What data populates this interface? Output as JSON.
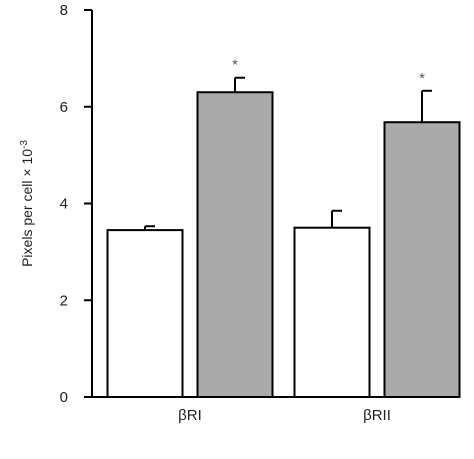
{
  "chart_data": {
    "type": "bar",
    "categories": [
      "βRI",
      "βRII"
    ],
    "series": [
      {
        "values": [
          3.45,
          3.5
        ],
        "errors": [
          0.08,
          0.35
        ],
        "color": "#ffffff"
      },
      {
        "values": [
          6.3,
          5.68
        ],
        "errors": [
          0.3,
          0.65
        ],
        "color": "#aaaaaa",
        "significance": [
          "*",
          "*"
        ]
      }
    ],
    "ylabel": "Pixels per cell × 10",
    "ylabel_superscript": "-3",
    "ylim": [
      0,
      8
    ],
    "yticks": [
      0,
      2,
      4,
      6,
      8
    ],
    "grid": false,
    "legend": "none"
  }
}
